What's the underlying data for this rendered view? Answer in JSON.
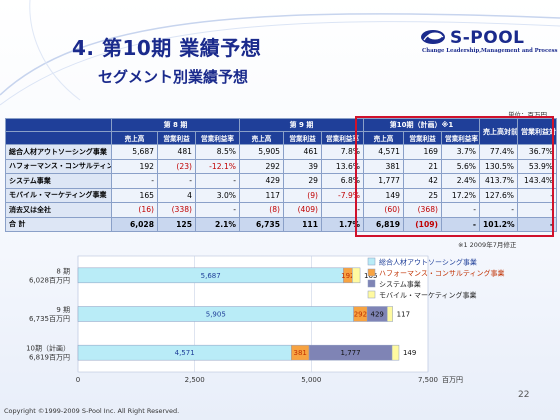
{
  "header": {
    "title": "4. 第10期 業績予想",
    "subtitle": "セグメント別業績予想",
    "logo_text": "S-POOL",
    "logo_tagline": "Change Leadership,Management and Process"
  },
  "unit_label": "単位：百万円",
  "table": {
    "period_headers": [
      "第 8 期",
      "第 9 期",
      "第10期（計画）※1"
    ],
    "sub_headers": [
      "売上高",
      "営業利益",
      "営業利益率"
    ],
    "yoy_headers": [
      "売上高対前年比",
      "営業利益対前年比"
    ],
    "rows": [
      {
        "label": "総合人材アウトソーシング事業",
        "cells": [
          "5,687",
          "481",
          "8.5%",
          "5,905",
          "461",
          "7.8%",
          "4,571",
          "169",
          "3.7%",
          "77.4%",
          "36.7%"
        ],
        "neg": []
      },
      {
        "label": "ハフォーマンス・コンサルティング事業",
        "cells": [
          "192",
          "(23)",
          "-12.1%",
          "292",
          "39",
          "13.6%",
          "381",
          "21",
          "5.6%",
          "130.5%",
          "53.9%"
        ],
        "neg": [
          1,
          2
        ]
      },
      {
        "label": "システム事業",
        "cells": [
          "-",
          "-",
          "-",
          "429",
          "29",
          "6.8%",
          "1,777",
          "42",
          "2.4%",
          "413.7%",
          "143.4%"
        ],
        "neg": []
      },
      {
        "label": "モバイル・マーケティング事業",
        "cells": [
          "165",
          "4",
          "3.0%",
          "117",
          "(9)",
          "-7.9%",
          "149",
          "25",
          "17.2%",
          "127.6%",
          "-"
        ],
        "neg": [
          4,
          5
        ]
      },
      {
        "label": "消去又は全社",
        "cells": [
          "(16)",
          "(338)",
          "-",
          "(8)",
          "(409)",
          "-",
          "(60)",
          "(368)",
          "-",
          "-",
          "-"
        ],
        "neg": [
          0,
          1,
          3,
          4,
          6,
          7
        ]
      },
      {
        "label": "合 計",
        "cells": [
          "6,028",
          "125",
          "2.1%",
          "6,735",
          "111",
          "1.7%",
          "6,819",
          "(109)",
          "-",
          "101.2%",
          "-"
        ],
        "neg": [
          7
        ],
        "total": true
      }
    ]
  },
  "note": "※1 2009年7月修正",
  "chart_data": {
    "type": "bar",
    "orientation": "horizontal",
    "stacked": true,
    "categories": [
      "8 期\n6,028百万円",
      "9 期\n6,735百万円",
      "10期（計画）\n6,819百万円"
    ],
    "series": [
      {
        "name": "総合人材アウトソーシング事業",
        "color": "#b9ecf7",
        "values": [
          5687,
          5905,
          4571
        ]
      },
      {
        "name": "ハフォーマンス・コンサルティング事業",
        "color": "#f7a341",
        "values": [
          192,
          292,
          381
        ]
      },
      {
        "name": "システム事業",
        "color": "#7f84b5",
        "values": [
          0,
          429,
          1777
        ]
      },
      {
        "name": "モバイル・マーケティング事業",
        "color": "#fffaa0",
        "values": [
          165,
          117,
          149
        ]
      }
    ],
    "value_labels": [
      [
        "5,687",
        "192",
        "",
        "165"
      ],
      [
        "5,905",
        "292",
        "429",
        "117"
      ],
      [
        "4,571",
        "381",
        "1,777",
        "149"
      ]
    ],
    "xlim": [
      0,
      7500
    ],
    "xticks": [
      "0",
      "2,500",
      "5,000",
      "7,500"
    ],
    "xunit": "百万円",
    "legend_position": "right"
  },
  "footer": "Copyright ©1999-2009 S-Pool Inc. All Right Reserved.",
  "page_number": "22"
}
